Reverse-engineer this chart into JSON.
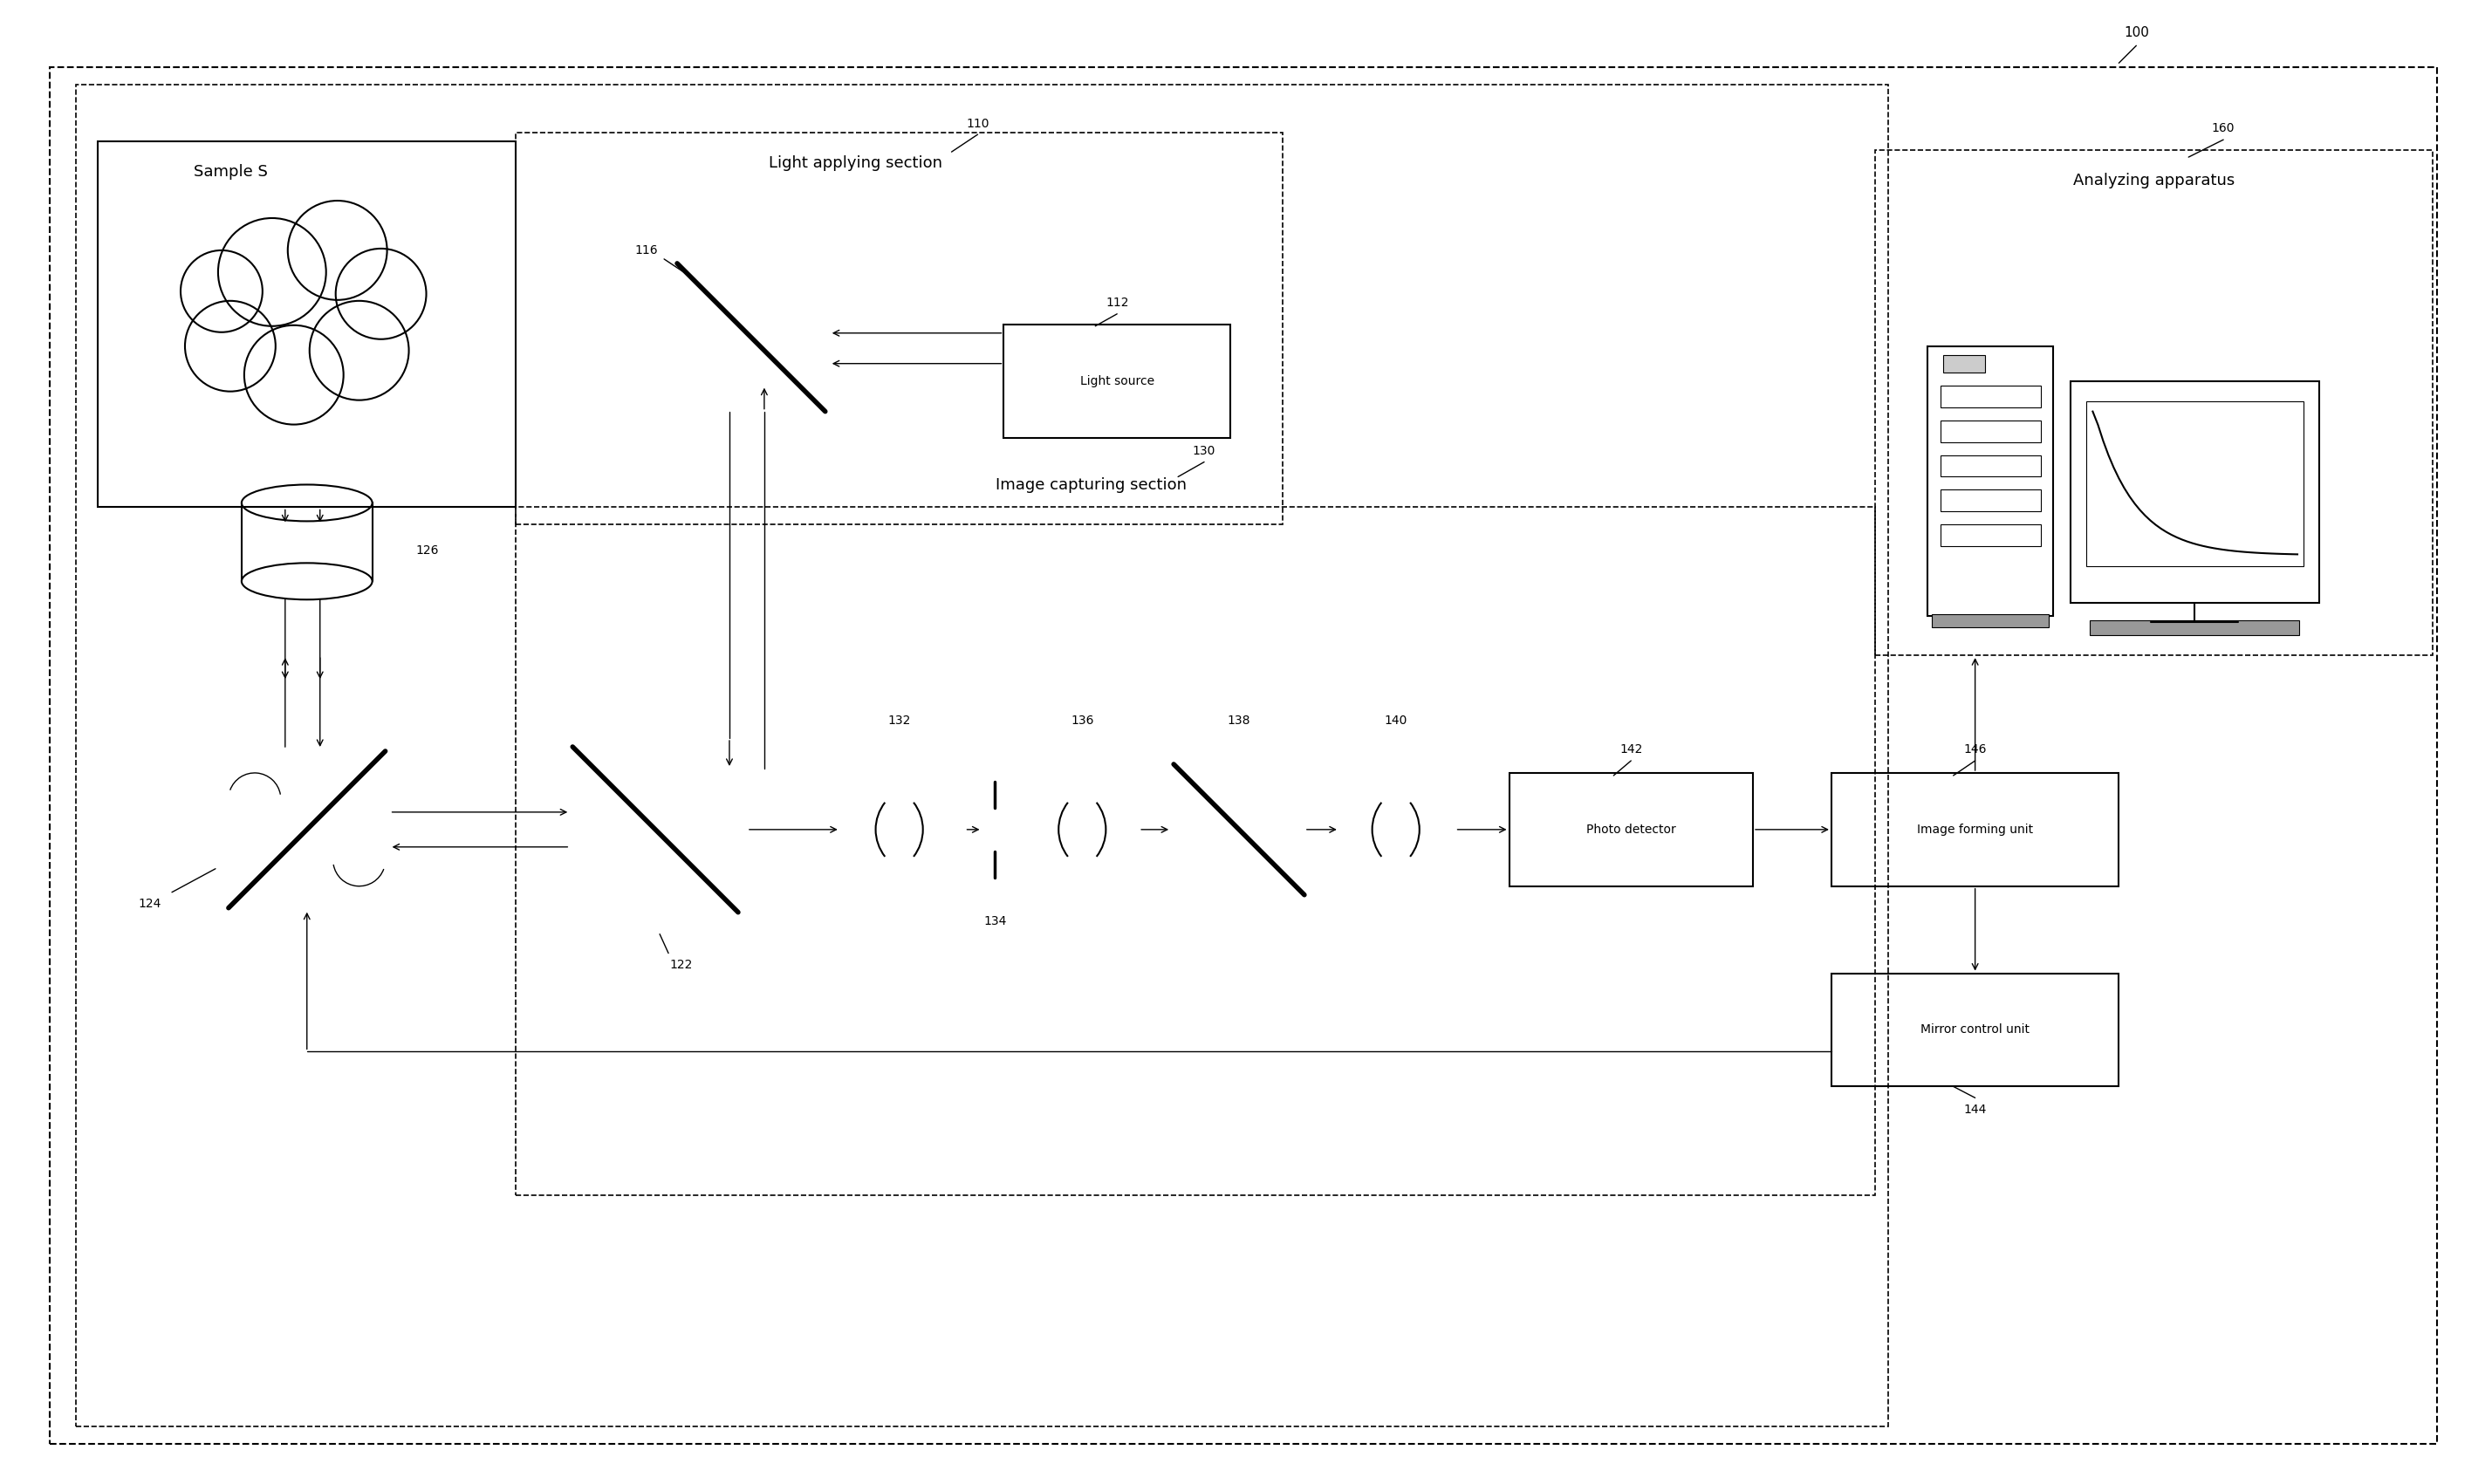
{
  "bg_color": "#ffffff",
  "lc": "#000000",
  "fig_width": 28.48,
  "fig_height": 17.01,
  "ref": {
    "main": "100",
    "n110": "110",
    "n112": "112",
    "n116": "116",
    "n122": "122",
    "n124": "124",
    "n126": "126",
    "n130": "130",
    "n132": "132",
    "n134": "134",
    "n136": "136",
    "n138": "138",
    "n140": "140",
    "n142": "142",
    "n144": "144",
    "n146": "146",
    "n160": "160"
  },
  "labels": {
    "sample_s": "Sample S",
    "light_applying": "Light applying section",
    "light_source": "Light source",
    "image_capturing": "Image capturing section",
    "analyzing": "Analyzing apparatus",
    "photo_detector": "Photo detector",
    "image_forming": "Image forming unit",
    "mirror_control": "Mirror control unit"
  }
}
